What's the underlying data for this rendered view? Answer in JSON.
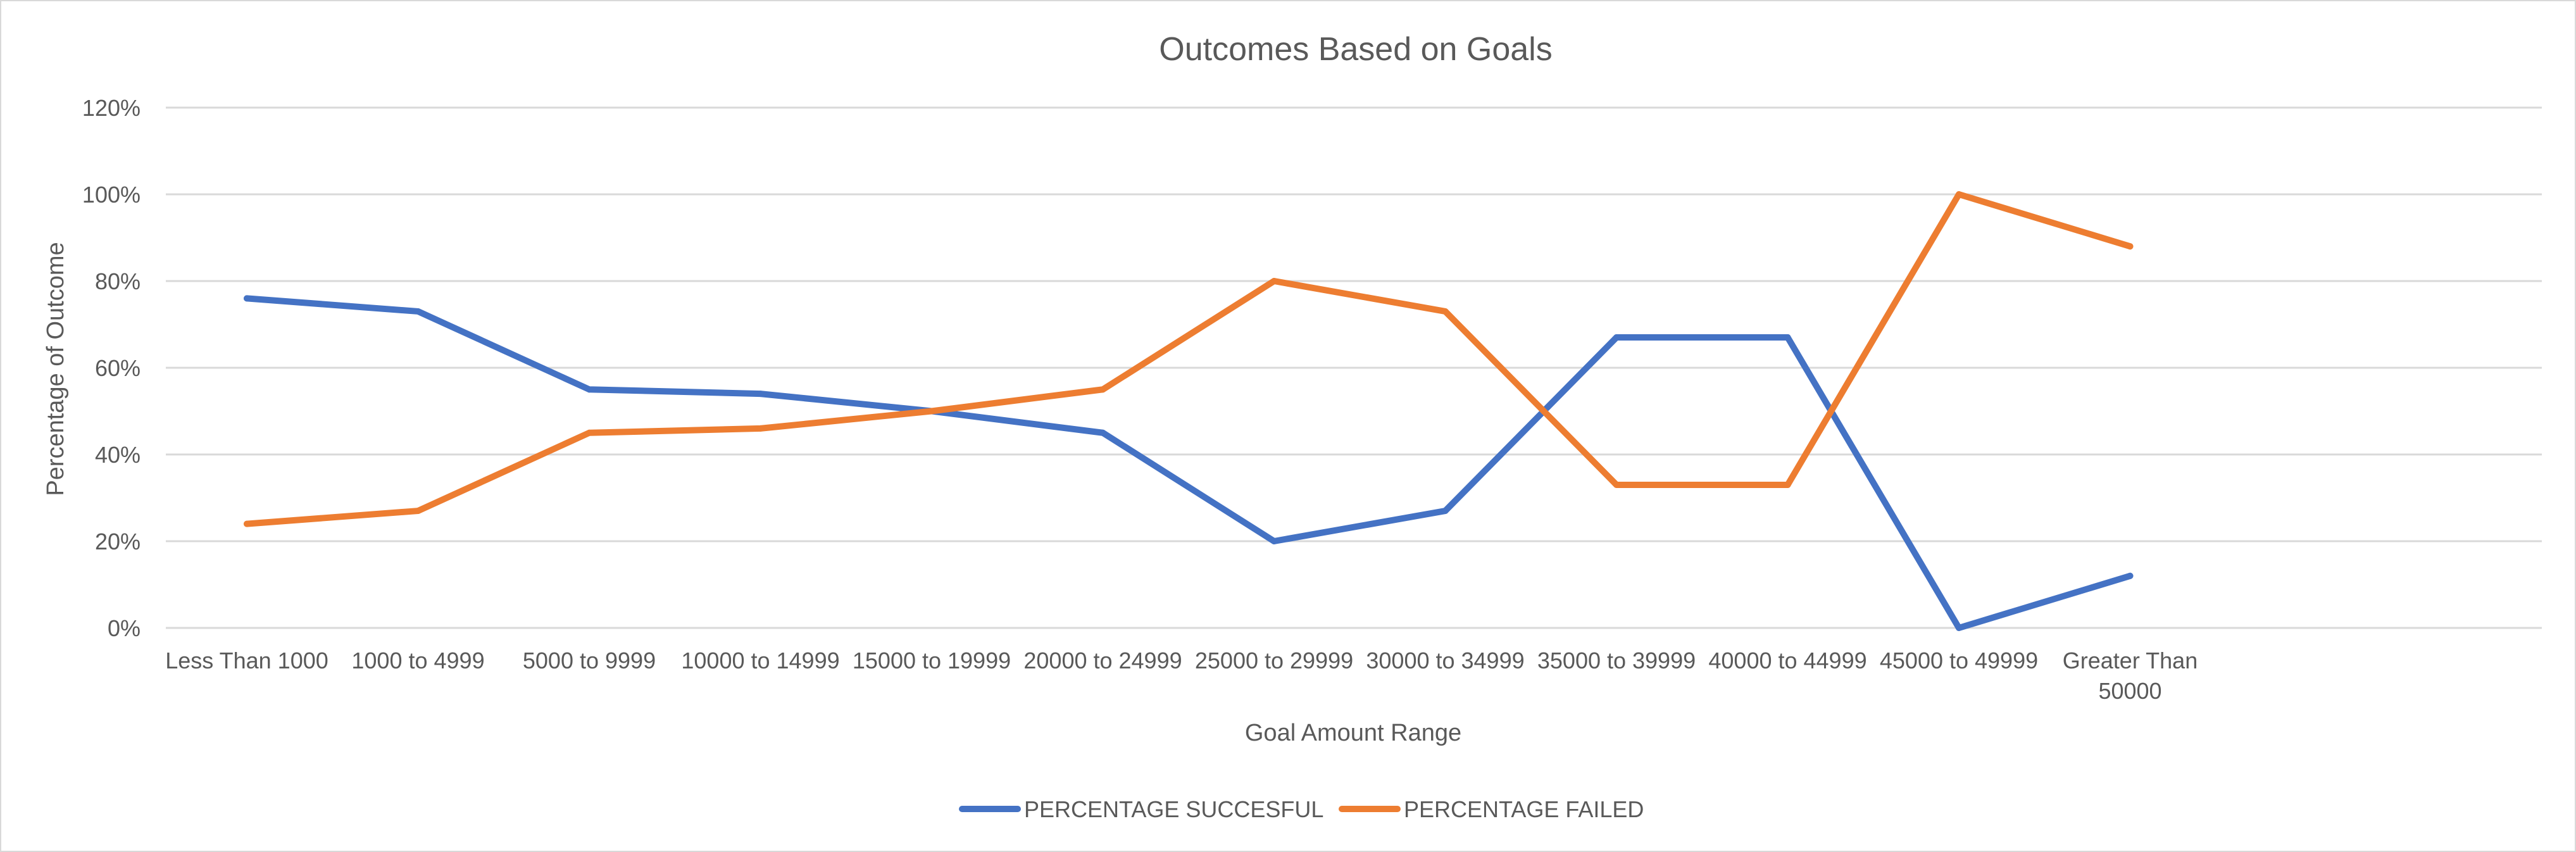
{
  "chart_data": {
    "type": "line",
    "title": "Outcomes Based on Goals",
    "xlabel": "Goal Amount Range",
    "ylabel": "Percentage of Outcome",
    "categories": [
      "Less Than 1000",
      "1000 to 4999",
      "5000 to 9999",
      "10000 to 14999",
      "15000 to 19999",
      "20000 to 24999",
      "25000 to 29999",
      "30000 to 34999",
      "35000 to 39999",
      "40000 to 44999",
      "45000 to 49999",
      "Greater Than 50000"
    ],
    "category_lines": [
      [
        "Less Than 1000"
      ],
      [
        "1000 to 4999"
      ],
      [
        "5000 to 9999"
      ],
      [
        "10000 to 14999"
      ],
      [
        "15000 to 19999"
      ],
      [
        "20000 to 24999"
      ],
      [
        "25000 to 29999"
      ],
      [
        "30000 to 34999"
      ],
      [
        "35000 to 39999"
      ],
      [
        "40000 to 44999"
      ],
      [
        "45000 to 49999"
      ],
      [
        "Greater Than",
        "50000"
      ]
    ],
    "yticks": [
      "0%",
      "20%",
      "40%",
      "60%",
      "80%",
      "100%",
      "120%"
    ],
    "ylim": [
      0,
      1.2
    ],
    "grid": true,
    "legend_position": "bottom",
    "series": [
      {
        "name": "PERCENTAGE SUCCESFUL",
        "color": "#4472C4",
        "values": [
          0.76,
          0.73,
          0.55,
          0.54,
          0.5,
          0.45,
          0.2,
          0.27,
          0.67,
          0.67,
          0.0,
          0.12
        ]
      },
      {
        "name": "PERCENTAGE FAILED",
        "color": "#ED7D31",
        "values": [
          0.24,
          0.27,
          0.45,
          0.46,
          0.5,
          0.55,
          0.8,
          0.73,
          0.33,
          0.33,
          1.0,
          0.88
        ]
      }
    ],
    "gridline_color": "#d9d9d9"
  }
}
